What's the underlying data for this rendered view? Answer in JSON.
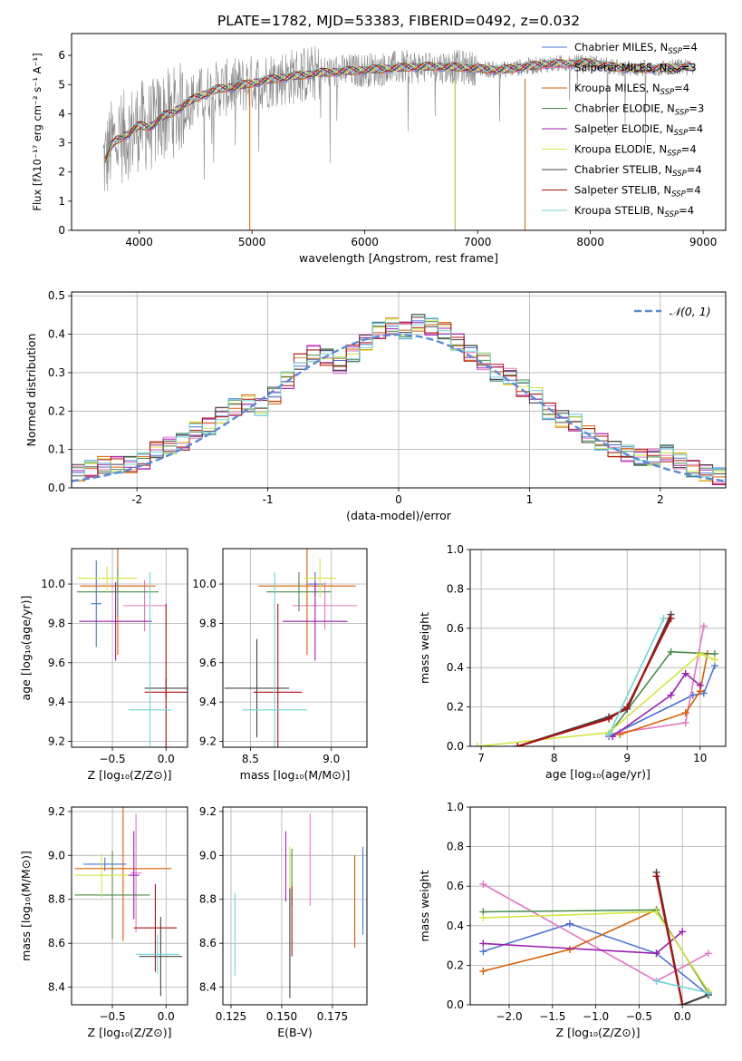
{
  "figure_title": "PLATE=1782, MJD=53383, FIBERID=0492, z=0.032",
  "chart_data": [
    {
      "id": "spectrum",
      "type": "line",
      "title": "PLATE=1782, MJD=53383, FIBERID=0492, z=0.032",
      "xlabel": "wavelength [Angstrom, rest frame]",
      "ylabel": "Flux [fλ10⁻¹⁷ erg cm⁻² s⁻¹ A⁻¹]",
      "xlim": [
        3400,
        9200
      ],
      "ylim": [
        0,
        6.75
      ],
      "xticks": [
        4000,
        5000,
        6000,
        7000,
        8000,
        9000
      ],
      "yticks": [
        0,
        1,
        2,
        3,
        4,
        5,
        6
      ],
      "grid": false,
      "legend_position": "top-right",
      "legend": [
        {
          "label": "Chabrier MILES, N",
          "sub": "SSP",
          "tail": "=4",
          "color": "#4c72d6"
        },
        {
          "label": "Salpeter MILES, N",
          "sub": "SSP",
          "tail": "=3",
          "color": "#e377c2"
        },
        {
          "label": "Kroupa MILES, N",
          "sub": "SSP",
          "tail": "=4",
          "color": "#d95f02"
        },
        {
          "label": "Chabrier ELODIE, N",
          "sub": "SSP",
          "tail": "=3",
          "color": "#4a8c4a"
        },
        {
          "label": "Salpeter ELODIE, N",
          "sub": "SSP",
          "tail": "=4",
          "color": "#9b1fae"
        },
        {
          "label": "Kroupa ELODIE, N",
          "sub": "SSP",
          "tail": "=4",
          "color": "#d4e640"
        },
        {
          "label": "Chabrier STELIB, N",
          "sub": "SSP",
          "tail": "=4",
          "color": "#444444"
        },
        {
          "label": "Salpeter STELIB, N",
          "sub": "SSP",
          "tail": "=4",
          "color": "#b01010"
        },
        {
          "label": "Kroupa STELIB, N",
          "sub": "SSP",
          "tail": "=4",
          "color": "#6fd6d6"
        }
      ],
      "data_color": "#888888",
      "model_color": "#6fd6d6",
      "continuum": [
        [
          3700,
          2.4
        ],
        [
          3750,
          2.9
        ],
        [
          3800,
          3.1
        ],
        [
          3900,
          3.3
        ],
        [
          4000,
          3.6
        ],
        [
          4100,
          3.55
        ],
        [
          4200,
          3.9
        ],
        [
          4300,
          4.05
        ],
        [
          4400,
          4.3
        ],
        [
          4500,
          4.55
        ],
        [
          4600,
          4.7
        ],
        [
          4700,
          4.85
        ],
        [
          4800,
          4.9
        ],
        [
          5000,
          5.05
        ],
        [
          5200,
          5.2
        ],
        [
          5400,
          5.3
        ],
        [
          5600,
          5.4
        ],
        [
          5800,
          5.45
        ],
        [
          6000,
          5.5
        ],
        [
          6200,
          5.55
        ],
        [
          6400,
          5.6
        ],
        [
          6600,
          5.62
        ],
        [
          6800,
          5.6
        ],
        [
          7000,
          5.55
        ],
        [
          7200,
          5.5
        ],
        [
          7400,
          5.6
        ],
        [
          7600,
          5.7
        ],
        [
          7800,
          5.72
        ],
        [
          8000,
          5.75
        ],
        [
          8200,
          5.6
        ],
        [
          8400,
          5.55
        ],
        [
          8600,
          5.55
        ],
        [
          8800,
          5.6
        ],
        [
          8900,
          5.6
        ]
      ]
    },
    {
      "id": "residuals",
      "type": "histogram",
      "xlabel": "(data-model)/error",
      "ylabel": "Normed distribution",
      "xlim": [
        -2.5,
        2.5
      ],
      "ylim": [
        0,
        0.51
      ],
      "xticks": [
        -2,
        -1,
        0,
        1,
        2
      ],
      "yticks": [
        0.0,
        0.1,
        0.2,
        0.3,
        0.4,
        0.5
      ],
      "grid": true,
      "legend_position": "top-right",
      "gaussian_label": "𝒩(0, 1)",
      "gaussian_color": "#5b8ad6",
      "bin_width": 0.1,
      "base_values": [
        0.04,
        0.05,
        0.06,
        0.06,
        0.06,
        0.07,
        0.1,
        0.11,
        0.12,
        0.15,
        0.16,
        0.19,
        0.21,
        0.22,
        0.21,
        0.24,
        0.28,
        0.33,
        0.35,
        0.34,
        0.32,
        0.35,
        0.38,
        0.41,
        0.42,
        0.41,
        0.43,
        0.42,
        0.41,
        0.38,
        0.35,
        0.33,
        0.3,
        0.29,
        0.26,
        0.24,
        0.2,
        0.18,
        0.17,
        0.14,
        0.12,
        0.1,
        0.09,
        0.08,
        0.08,
        0.09,
        0.07,
        0.05,
        0.04,
        0.03
      ]
    },
    {
      "id": "age-vs-Z",
      "type": "scatter-errorbar",
      "xlabel": "Z [log₁₀(Z/Z⊙)]",
      "ylabel": "age  [log₁₀(age/yr)]",
      "xlim": [
        -0.88,
        0.2
      ],
      "ylim": [
        9.17,
        10.18
      ],
      "xticks": [
        -0.5,
        0.0
      ],
      "xticklabels": [
        "−0.5",
        "0.0"
      ],
      "yticks": [
        9.2,
        9.4,
        9.6,
        9.8,
        10.0
      ],
      "grid": true,
      "points": [
        {
          "x": -0.65,
          "y": 9.9,
          "xerr": 0.05,
          "yerr": 0.22,
          "color": "#4c72d6"
        },
        {
          "x": -0.2,
          "y": 9.89,
          "xerr": 0.2,
          "yerr": 0.13,
          "color": "#e377c2"
        },
        {
          "x": -0.45,
          "y": 9.99,
          "xerr": 0.35,
          "yerr": 0.35,
          "color": "#d95f02"
        },
        {
          "x": -0.45,
          "y": 9.96,
          "xerr": 0.38,
          "yerr": 0.12,
          "color": "#4a8c4a"
        },
        {
          "x": -0.47,
          "y": 9.81,
          "xerr": 0.34,
          "yerr": 0.2,
          "color": "#9b1fae"
        },
        {
          "x": -0.55,
          "y": 10.03,
          "xerr": 0.28,
          "yerr": 0.06,
          "color": "#d4e640"
        },
        {
          "x": 0.0,
          "y": 9.47,
          "xerr": 0.2,
          "yerr": 0.05,
          "color": "#444444"
        },
        {
          "x": 0.0,
          "y": 9.45,
          "xerr": 0.2,
          "yerr": 0.45,
          "color": "#b01010"
        },
        {
          "x": -0.15,
          "y": 9.36,
          "xerr": 0.2,
          "yerr": 0.7,
          "color": "#6fd6d6"
        }
      ]
    },
    {
      "id": "age-vs-mass",
      "type": "scatter-errorbar",
      "xlabel": "mass [log₁₀(M/M⊙)]",
      "ylabel": "",
      "xlim": [
        8.33,
        9.22
      ],
      "ylim": [
        9.17,
        10.18
      ],
      "xticks": [
        8.5,
        9.0
      ],
      "xticklabels": [
        "8.5",
        "9.0"
      ],
      "yticks": [
        9.2,
        9.4,
        9.6,
        9.8,
        10.0
      ],
      "grid": true,
      "points": [
        {
          "x": 8.9,
          "y": 10.0,
          "xerr": 0.05,
          "yerr": 0.06,
          "color": "#4c72d6"
        },
        {
          "x": 8.96,
          "y": 9.89,
          "xerr": 0.2,
          "yerr": 0.12,
          "color": "#e377c2"
        },
        {
          "x": 8.85,
          "y": 9.99,
          "xerr": 0.3,
          "yerr": 0.35,
          "color": "#d95f02"
        },
        {
          "x": 8.8,
          "y": 9.96,
          "xerr": 0.2,
          "yerr": 0.1,
          "color": "#4a8c4a"
        },
        {
          "x": 8.9,
          "y": 9.81,
          "xerr": 0.2,
          "yerr": 0.2,
          "color": "#9b1fae"
        },
        {
          "x": 8.93,
          "y": 10.03,
          "xerr": 0.1,
          "yerr": 0.1,
          "color": "#d4e640"
        },
        {
          "x": 8.54,
          "y": 9.47,
          "xerr": 0.2,
          "yerr": 0.25,
          "color": "#444444"
        },
        {
          "x": 8.67,
          "y": 9.45,
          "xerr": 0.15,
          "yerr": 0.45,
          "color": "#b01010"
        },
        {
          "x": 8.65,
          "y": 9.36,
          "xerr": 0.2,
          "yerr": 0.7,
          "color": "#6fd6d6"
        }
      ]
    },
    {
      "id": "massweight-vs-age",
      "type": "line",
      "xlabel": "age  [log₁₀(age/yr)]",
      "ylabel": "mass weight",
      "xlim": [
        6.85,
        10.35
      ],
      "ylim": [
        0.0,
        1.0
      ],
      "xticks": [
        7,
        8,
        9,
        10
      ],
      "yticks": [
        0.0,
        0.2,
        0.4,
        0.6,
        0.8,
        1.0
      ],
      "grid": true,
      "series": [
        {
          "color": "#4c72d6",
          "x": [
            8.75,
            9.9,
            10.05,
            10.2
          ],
          "y": [
            0.05,
            0.26,
            0.27,
            0.41
          ]
        },
        {
          "color": "#e377c2",
          "x": [
            8.9,
            9.8,
            10.05
          ],
          "y": [
            0.07,
            0.12,
            0.61
          ]
        },
        {
          "color": "#d95f02",
          "x": [
            8.9,
            9.8,
            10.0,
            10.1
          ],
          "y": [
            0.06,
            0.17,
            0.28,
            0.47
          ]
        },
        {
          "color": "#4a8c4a",
          "x": [
            8.75,
            9.6,
            10.2
          ],
          "y": [
            0.06,
            0.48,
            0.47
          ]
        },
        {
          "color": "#9b1fae",
          "x": [
            8.8,
            9.6,
            9.8,
            10.0
          ],
          "y": [
            0.05,
            0.26,
            0.37,
            0.31
          ]
        },
        {
          "color": "#d4e640",
          "x": [
            6.95,
            8.75,
            10.0,
            10.2
          ],
          "y": [
            0.0,
            0.07,
            0.47,
            0.44
          ]
        },
        {
          "color": "#444444",
          "x": [
            7.5,
            8.75,
            9.0,
            9.6
          ],
          "y": [
            0.0,
            0.15,
            0.19,
            0.67
          ]
        },
        {
          "color": "#b01010",
          "x": [
            7.5,
            8.75,
            9.0,
            9.6
          ],
          "y": [
            0.0,
            0.14,
            0.2,
            0.65
          ]
        },
        {
          "color": "#6fd6d6",
          "x": [
            8.75,
            9.5
          ],
          "y": [
            0.06,
            0.65
          ]
        }
      ]
    },
    {
      "id": "mass-vs-Z",
      "type": "scatter-errorbar",
      "xlabel": "Z [log₁₀(Z/Z⊙)]",
      "ylabel": "mass [log₁₀(M/M⊙)]",
      "xlim": [
        -0.88,
        0.2
      ],
      "ylim": [
        8.32,
        9.22
      ],
      "xticks": [
        -0.5,
        0.0
      ],
      "xticklabels": [
        "−0.5",
        "0.0"
      ],
      "yticks": [
        8.4,
        8.6,
        8.8,
        9.0,
        9.2
      ],
      "grid": true,
      "points": [
        {
          "x": -0.57,
          "y": 8.96,
          "xerr": 0.2,
          "yerr": 0.03,
          "color": "#4c72d6"
        },
        {
          "x": -0.28,
          "y": 8.92,
          "xerr": 0.05,
          "yerr": 0.27,
          "color": "#e377c2"
        },
        {
          "x": -0.4,
          "y": 8.94,
          "xerr": 0.45,
          "yerr": 0.33,
          "color": "#d95f02"
        },
        {
          "x": -0.5,
          "y": 8.82,
          "xerr": 0.35,
          "yerr": 0.2,
          "color": "#4a8c4a"
        },
        {
          "x": -0.3,
          "y": 8.91,
          "xerr": 0.05,
          "yerr": 0.2,
          "color": "#9b1fae"
        },
        {
          "x": -0.6,
          "y": 8.91,
          "xerr": 0.25,
          "yerr": 0.1,
          "color": "#d4e640"
        },
        {
          "x": -0.05,
          "y": 8.54,
          "xerr": 0.2,
          "yerr": 0.18,
          "color": "#444444"
        },
        {
          "x": -0.1,
          "y": 8.67,
          "xerr": 0.2,
          "yerr": 0.2,
          "color": "#b01010"
        },
        {
          "x": -0.08,
          "y": 8.55,
          "xerr": 0.2,
          "yerr": 0.09,
          "color": "#6fd6d6"
        }
      ]
    },
    {
      "id": "mass-vs-EBV",
      "type": "scatter-errorbar",
      "xlabel": "E(B-V)",
      "ylabel": "",
      "xlim": [
        0.121,
        0.192
      ],
      "ylim": [
        8.32,
        9.22
      ],
      "xticks": [
        0.125,
        0.15,
        0.175
      ],
      "xticklabels": [
        "0.125",
        "0.150",
        "0.175"
      ],
      "yticks": [
        8.4,
        8.6,
        8.8,
        9.0,
        9.2
      ],
      "grid": true,
      "points": [
        {
          "x": 0.19,
          "y": 8.84,
          "xerr": 0,
          "yerr": 0.2,
          "color": "#4c72d6"
        },
        {
          "x": 0.164,
          "y": 8.98,
          "xerr": 0,
          "yerr": 0.21,
          "color": "#e377c2"
        },
        {
          "x": 0.186,
          "y": 8.79,
          "xerr": 0,
          "yerr": 0.21,
          "color": "#d95f02"
        },
        {
          "x": 0.155,
          "y": 8.9,
          "xerr": 0,
          "yerr": 0.13,
          "color": "#4a8c4a"
        },
        {
          "x": 0.152,
          "y": 8.95,
          "xerr": 0,
          "yerr": 0.16,
          "color": "#9b1fae"
        },
        {
          "x": 0.154,
          "y": 8.92,
          "xerr": 0,
          "yerr": 0.12,
          "color": "#d4e640"
        },
        {
          "x": 0.154,
          "y": 8.6,
          "xerr": 0,
          "yerr": 0.25,
          "color": "#444444"
        },
        {
          "x": 0.155,
          "y": 8.7,
          "xerr": 0,
          "yerr": 0.16,
          "color": "#b01010"
        },
        {
          "x": 0.127,
          "y": 8.64,
          "xerr": 0,
          "yerr": 0.19,
          "color": "#6fd6d6"
        }
      ]
    },
    {
      "id": "massweight-vs-Z",
      "type": "line",
      "xlabel": "Z [log₁₀(Z/Z⊙)]",
      "ylabel": "mass weight",
      "xlim": [
        -2.45,
        0.5
      ],
      "ylim": [
        0.0,
        1.0
      ],
      "xticks": [
        -2.0,
        -1.5,
        -1.0,
        -0.5,
        0.0
      ],
      "xticklabels": [
        "−2.0",
        "−1.5",
        "−1.0",
        "−0.5",
        "0.0"
      ],
      "yticks": [
        0.0,
        0.2,
        0.4,
        0.6,
        0.8,
        1.0
      ],
      "grid": true,
      "series": [
        {
          "color": "#4c72d6",
          "x": [
            -2.3,
            -1.3,
            -0.3,
            0.3
          ],
          "y": [
            0.27,
            0.41,
            0.26,
            0.05
          ]
        },
        {
          "color": "#e377c2",
          "x": [
            -2.3,
            -0.3,
            0.3
          ],
          "y": [
            0.61,
            0.12,
            0.26
          ]
        },
        {
          "color": "#d95f02",
          "x": [
            -2.3,
            -1.3,
            -0.3,
            0.3
          ],
          "y": [
            0.17,
            0.28,
            0.48,
            0.06
          ]
        },
        {
          "color": "#4a8c4a",
          "x": [
            -2.3,
            -0.3,
            0.3
          ],
          "y": [
            0.47,
            0.48,
            0.06
          ]
        },
        {
          "color": "#9b1fae",
          "x": [
            -2.3,
            -0.3,
            0.0
          ],
          "y": [
            0.31,
            0.26,
            0.37
          ]
        },
        {
          "color": "#d4e640",
          "x": [
            -2.3,
            -0.3,
            0.3
          ],
          "y": [
            0.44,
            0.47,
            0.07
          ]
        },
        {
          "color": "#444444",
          "x": [
            -0.3,
            0.0,
            0.3
          ],
          "y": [
            0.67,
            0.0,
            0.05
          ]
        },
        {
          "color": "#b01010",
          "x": [
            -0.3,
            0.0
          ],
          "y": [
            0.65,
            0.0
          ]
        },
        {
          "color": "#6fd6d6",
          "x": [
            -0.3,
            0.3
          ],
          "y": [
            0.12,
            0.06
          ]
        }
      ]
    }
  ]
}
